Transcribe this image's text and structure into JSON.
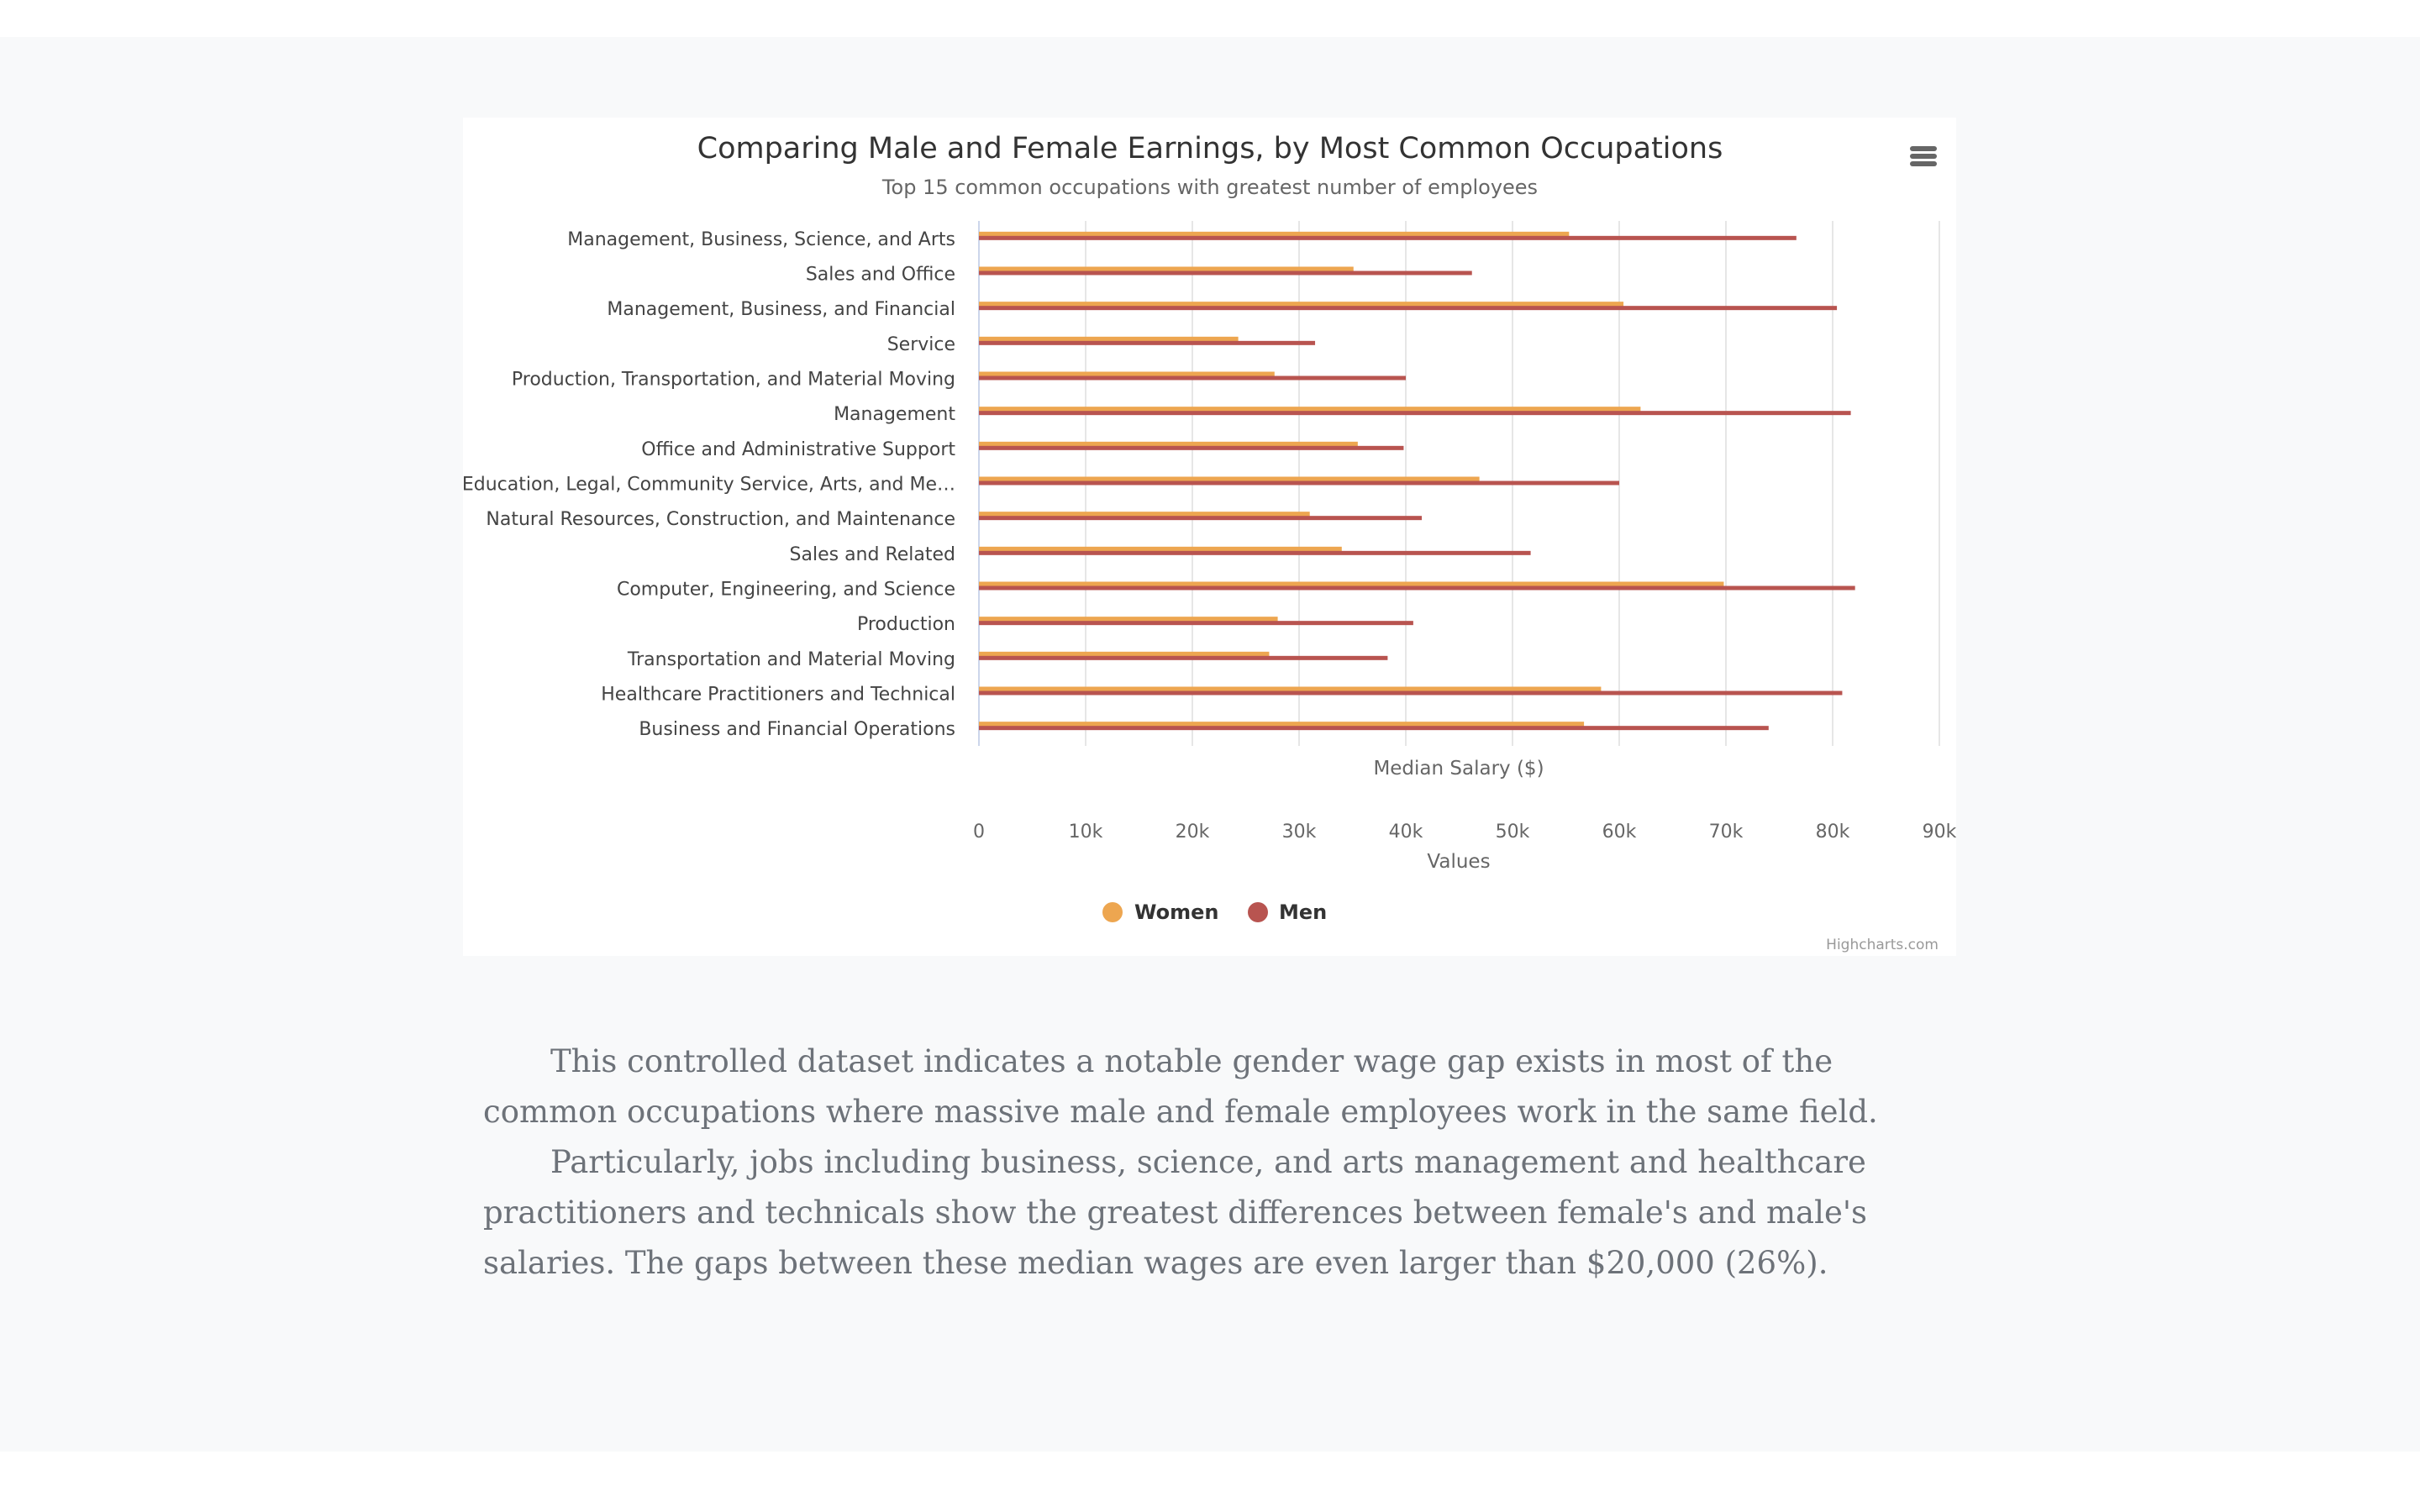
{
  "chart_data": {
    "type": "bar",
    "orientation": "horizontal",
    "title": "Comparing Male and Female Earnings, by Most Common Occupations",
    "subtitle": "Top 15 common occupations with greatest number of employees",
    "top_axis_title": "Median Salary ($)",
    "xlabel": "Values",
    "xlim": [
      0,
      90000
    ],
    "tick_values": [
      0,
      10000,
      20000,
      30000,
      40000,
      50000,
      60000,
      70000,
      80000,
      90000
    ],
    "tick_labels": [
      "0",
      "10k",
      "20k",
      "30k",
      "40k",
      "50k",
      "60k",
      "70k",
      "80k",
      "90k"
    ],
    "grid": true,
    "legend_position": "bottom-center",
    "categories": [
      "Management, Business, Science, and Arts",
      "Sales and Office",
      "Management, Business, and Financial",
      "Service",
      "Production, Transportation, and Material Moving",
      "Management",
      "Office and Administrative Support",
      "Education, Legal, Community Service, Arts, and Me…",
      "Natural Resources, Construction, and Maintenance",
      "Sales and Related",
      "Computer, Engineering, and Science",
      "Production",
      "Transportation and Material Moving",
      "Healthcare Practitioners and Technical",
      "Business and Financial Operations"
    ],
    "series": [
      {
        "name": "Women",
        "color": "#eda650",
        "values": [
          55300,
          35100,
          60400,
          24300,
          27700,
          62000,
          35500,
          46900,
          31000,
          34000,
          69800,
          28000,
          27200,
          58300,
          56700
        ]
      },
      {
        "name": "Men",
        "color": "#b85450",
        "values": [
          76600,
          46200,
          80400,
          31500,
          40000,
          81700,
          39800,
          60000,
          41500,
          51700,
          82100,
          40700,
          38300,
          80900,
          74000
        ]
      }
    ]
  },
  "credits": "Highcharts.com",
  "menu_icon": "hamburger-menu-icon",
  "article": {
    "paragraph_1": "This controlled dataset indicates a notable gender wage gap exists in most of the common occupations where massive male and female employees work in the same field.",
    "paragraph_2": "Particularly, jobs including business, science, and arts management and healthcare practitioners and technicals show the greatest differences between female's and male's salaries. The gaps between these median wages are even larger than $20,000 (26%)."
  }
}
